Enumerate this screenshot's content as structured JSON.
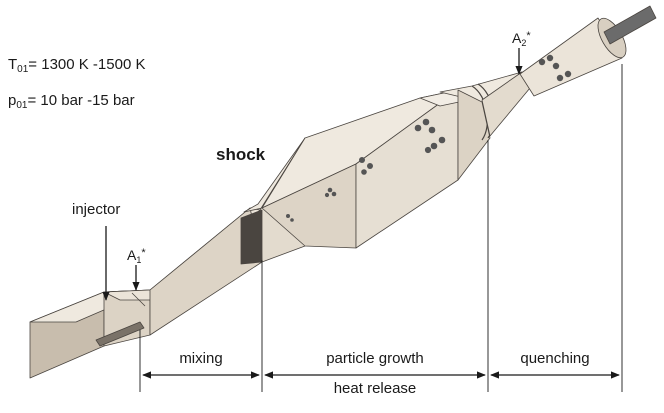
{
  "conditions": {
    "temperature": {
      "symbol": "T",
      "subscript": "01",
      "value": "= 1300 K -1500 K"
    },
    "pressure": {
      "symbol": "p",
      "subscript": "01",
      "value": "= 10 bar -15 bar"
    }
  },
  "labels": {
    "shock": "shock",
    "injector": "injector",
    "throat1": {
      "symbol": "A",
      "subscript": "1",
      "suffix": "*"
    },
    "throat2": {
      "symbol": "A",
      "subscript": "2",
      "suffix": "*"
    }
  },
  "zones": {
    "mixing": "mixing",
    "particle_growth": "particle growth",
    "heat_release": "heat release",
    "quenching": "quenching"
  },
  "colors": {
    "body_light": "#e8e1d6",
    "body_mid": "#d8cfc1",
    "body_dark": "#c2b7a6",
    "shock_plane": "#4a4540",
    "particles": "#555555",
    "probe": "#6b6b6b"
  }
}
